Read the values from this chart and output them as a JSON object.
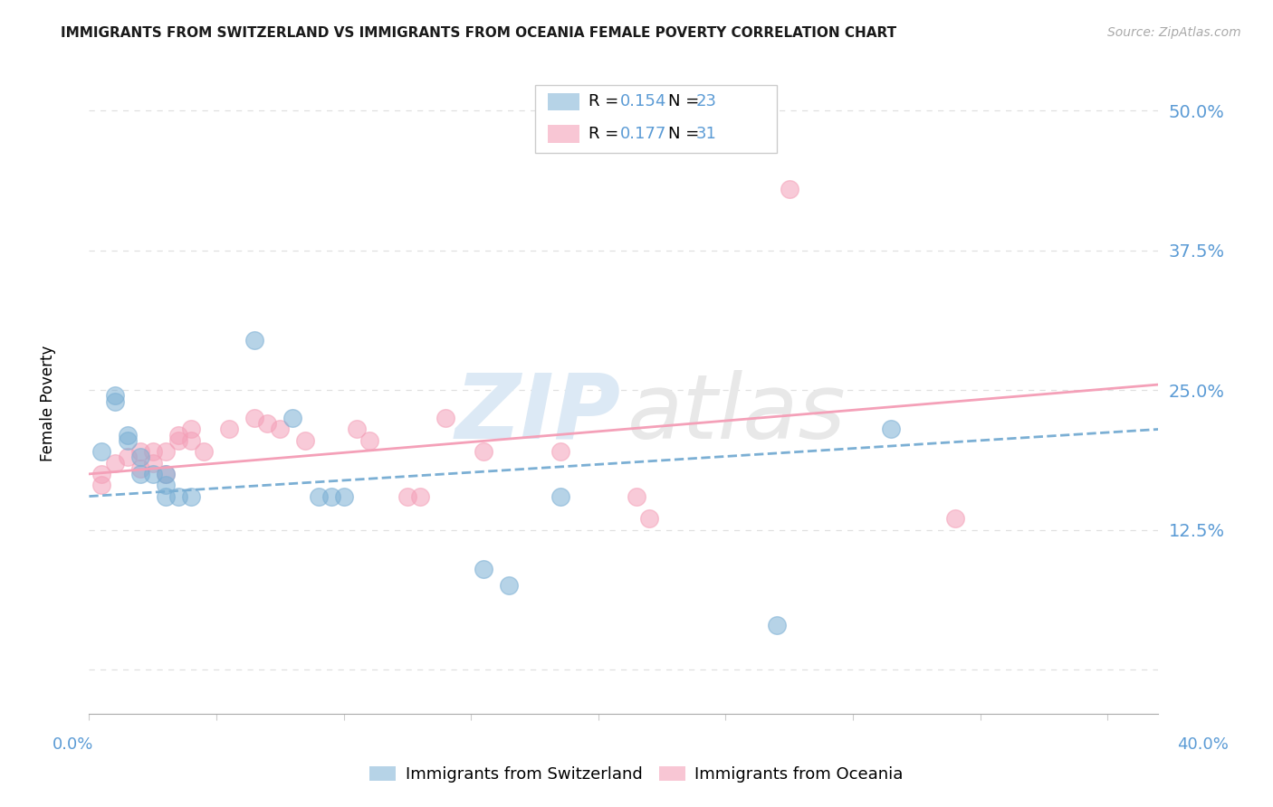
{
  "title": "IMMIGRANTS FROM SWITZERLAND VS IMMIGRANTS FROM OCEANIA FEMALE POVERTY CORRELATION CHART",
  "source": "Source: ZipAtlas.com",
  "ylabel": "Female Poverty",
  "xlim": [
    0.0,
    0.42
  ],
  "ylim": [
    -0.04,
    0.545
  ],
  "ytick_vals": [
    0.0,
    0.125,
    0.25,
    0.375,
    0.5
  ],
  "ytick_labels": [
    "",
    "12.5%",
    "25.0%",
    "37.5%",
    "50.0%"
  ],
  "xtick_left_label": "0.0%",
  "xtick_right_label": "40.0%",
  "legend_r1": "R = 0.154",
  "legend_n1": "N = 23",
  "legend_r2": "R = 0.177",
  "legend_n2": "N = 31",
  "switzerland_scatter": [
    [
      0.005,
      0.195
    ],
    [
      0.01,
      0.245
    ],
    [
      0.01,
      0.24
    ],
    [
      0.015,
      0.21
    ],
    [
      0.015,
      0.205
    ],
    [
      0.02,
      0.19
    ],
    [
      0.02,
      0.175
    ],
    [
      0.025,
      0.175
    ],
    [
      0.03,
      0.175
    ],
    [
      0.03,
      0.165
    ],
    [
      0.03,
      0.155
    ],
    [
      0.035,
      0.155
    ],
    [
      0.04,
      0.155
    ],
    [
      0.065,
      0.295
    ],
    [
      0.08,
      0.225
    ],
    [
      0.09,
      0.155
    ],
    [
      0.095,
      0.155
    ],
    [
      0.1,
      0.155
    ],
    [
      0.155,
      0.09
    ],
    [
      0.165,
      0.075
    ],
    [
      0.185,
      0.155
    ],
    [
      0.27,
      0.04
    ],
    [
      0.315,
      0.215
    ]
  ],
  "oceania_scatter": [
    [
      0.005,
      0.175
    ],
    [
      0.005,
      0.165
    ],
    [
      0.01,
      0.185
    ],
    [
      0.015,
      0.19
    ],
    [
      0.02,
      0.195
    ],
    [
      0.02,
      0.18
    ],
    [
      0.025,
      0.195
    ],
    [
      0.025,
      0.185
    ],
    [
      0.03,
      0.195
    ],
    [
      0.03,
      0.175
    ],
    [
      0.035,
      0.205
    ],
    [
      0.035,
      0.21
    ],
    [
      0.04,
      0.215
    ],
    [
      0.04,
      0.205
    ],
    [
      0.045,
      0.195
    ],
    [
      0.055,
      0.215
    ],
    [
      0.065,
      0.225
    ],
    [
      0.07,
      0.22
    ],
    [
      0.075,
      0.215
    ],
    [
      0.085,
      0.205
    ],
    [
      0.105,
      0.215
    ],
    [
      0.11,
      0.205
    ],
    [
      0.125,
      0.155
    ],
    [
      0.13,
      0.155
    ],
    [
      0.14,
      0.225
    ],
    [
      0.155,
      0.195
    ],
    [
      0.185,
      0.195
    ],
    [
      0.215,
      0.155
    ],
    [
      0.22,
      0.135
    ],
    [
      0.275,
      0.43
    ],
    [
      0.34,
      0.135
    ]
  ],
  "switzerland_trend_x": [
    0.0,
    0.42
  ],
  "switzerland_trend_y": [
    0.155,
    0.215
  ],
  "oceania_trend_x": [
    0.0,
    0.42
  ],
  "oceania_trend_y": [
    0.175,
    0.255
  ],
  "switzerland_color": "#7bafd4",
  "oceania_color": "#f4a0b8",
  "tick_color": "#5b9bd5",
  "grid_color": "#e0e0e0",
  "title_color": "#1a1a1a",
  "source_color": "#aaaaaa",
  "watermark_zip_color": "#dce9f5",
  "watermark_atlas_color": "#e8e8e8"
}
